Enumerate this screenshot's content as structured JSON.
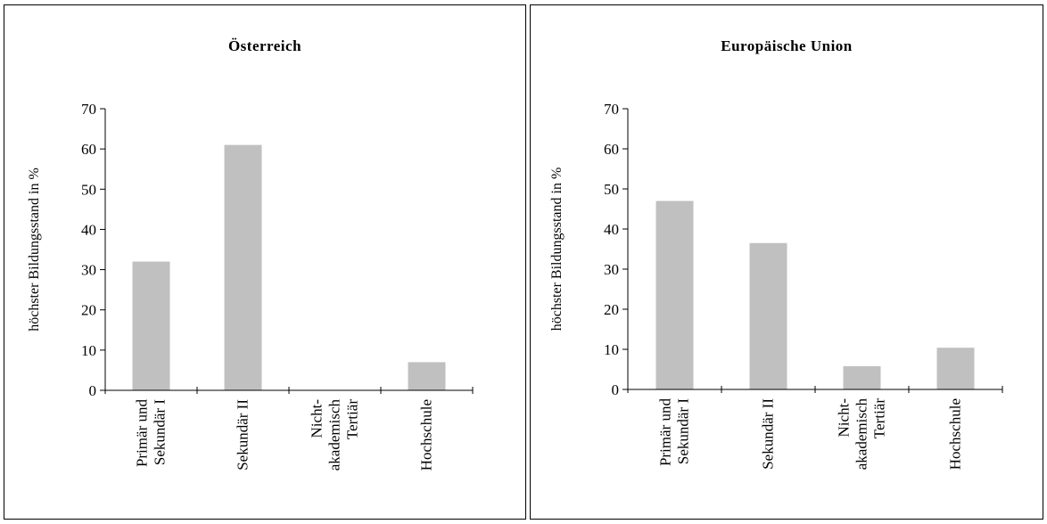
{
  "chart_data": [
    {
      "type": "bar",
      "title": "Österreich",
      "ylabel": "höchster Bildungsstand in %",
      "xlabel": "",
      "ylim": [
        0,
        70
      ],
      "yticks": [
        0,
        10,
        20,
        30,
        40,
        50,
        60,
        70
      ],
      "categories": [
        [
          "Primär und",
          "Sekundär I"
        ],
        [
          "Sekundär II"
        ],
        [
          "Nicht-",
          "akademisch",
          "Tertiär"
        ],
        [
          "Hochschule"
        ]
      ],
      "values": [
        32,
        61,
        0,
        7
      ],
      "grid": false,
      "bar_color": "#c0c0c0"
    },
    {
      "type": "bar",
      "title": "Europäische Union",
      "ylabel": "höchster Bildungsstand in %",
      "xlabel": "",
      "ylim": [
        0,
        70
      ],
      "yticks": [
        0,
        10,
        20,
        30,
        40,
        50,
        60,
        70
      ],
      "categories": [
        [
          "Primär und",
          "Sekundär I"
        ],
        [
          "Sekundär II"
        ],
        [
          "Nicht-",
          "akademisch",
          "Tertiär"
        ],
        [
          "Hochschule"
        ]
      ],
      "values": [
        47,
        36.5,
        5.8,
        10.4
      ],
      "grid": false,
      "bar_color": "#c0c0c0"
    }
  ]
}
